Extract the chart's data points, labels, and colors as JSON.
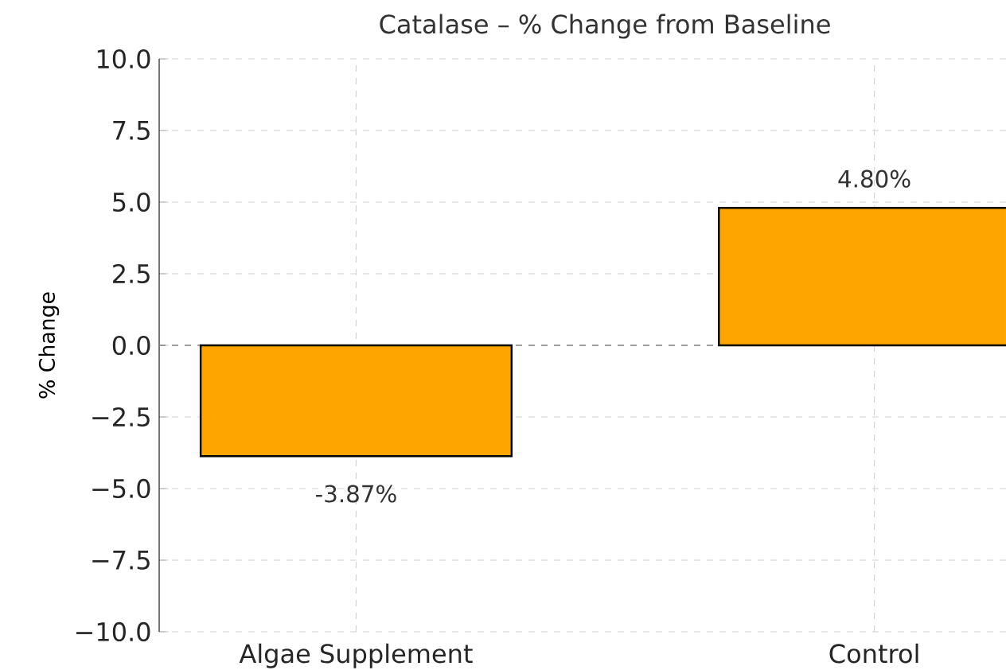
{
  "chart_data": {
    "type": "bar",
    "title": "Catalase – % Change from Baseline",
    "ylabel": "% Change",
    "categories": [
      "Algae Supplement",
      "Control"
    ],
    "values": [
      -3.87,
      4.8
    ],
    "value_labels": [
      "-3.87%",
      "4.80%"
    ],
    "color": "#ffa500",
    "ylim": [
      -10,
      10
    ],
    "yticks": [
      {
        "value": -10,
        "label": "−10.0"
      },
      {
        "value": -7.5,
        "label": "−7.5"
      },
      {
        "value": -5,
        "label": "−5.0"
      },
      {
        "value": -2.5,
        "label": "−2.5"
      },
      {
        "value": 0,
        "label": "0.0"
      },
      {
        "value": 2.5,
        "label": "2.5"
      },
      {
        "value": 5,
        "label": "5.0"
      },
      {
        "value": 7.5,
        "label": "7.5"
      },
      {
        "value": 10,
        "label": "10.0"
      }
    ],
    "grid": true,
    "ref_lines": [
      {
        "axis": "y",
        "value": 0,
        "color": "#888888",
        "line_style": "dashed"
      }
    ]
  }
}
